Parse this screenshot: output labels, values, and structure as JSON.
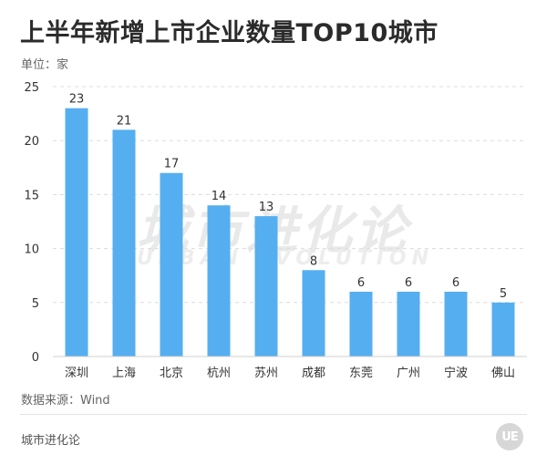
{
  "title": "上半年新增上市企业数量TOP10城市",
  "unit": "单位：家",
  "source": "数据来源：Wind",
  "footer": {
    "brand": "城市进化论",
    "logo_text": "UE"
  },
  "watermark": {
    "cn": "城市进化论",
    "en": "URBAN EVOLUTION"
  },
  "colors": {
    "bar": "#55aef0",
    "grid": "#dcdcdc",
    "axis": "#cfcfcf",
    "text": "#333333"
  },
  "chart_data": {
    "type": "bar",
    "title": "上半年新增上市企业数量TOP10城市",
    "xlabel": "",
    "ylabel": "",
    "categories": [
      "深圳",
      "上海",
      "北京",
      "杭州",
      "苏州",
      "成都",
      "东莞",
      "广州",
      "宁波",
      "佛山"
    ],
    "values": [
      23,
      21,
      17,
      14,
      13,
      8,
      6,
      6,
      6,
      5
    ],
    "ylim": [
      0,
      25
    ],
    "yticks": [
      0,
      5,
      10,
      15,
      20,
      25
    ],
    "grid": true,
    "data_labels": true
  }
}
